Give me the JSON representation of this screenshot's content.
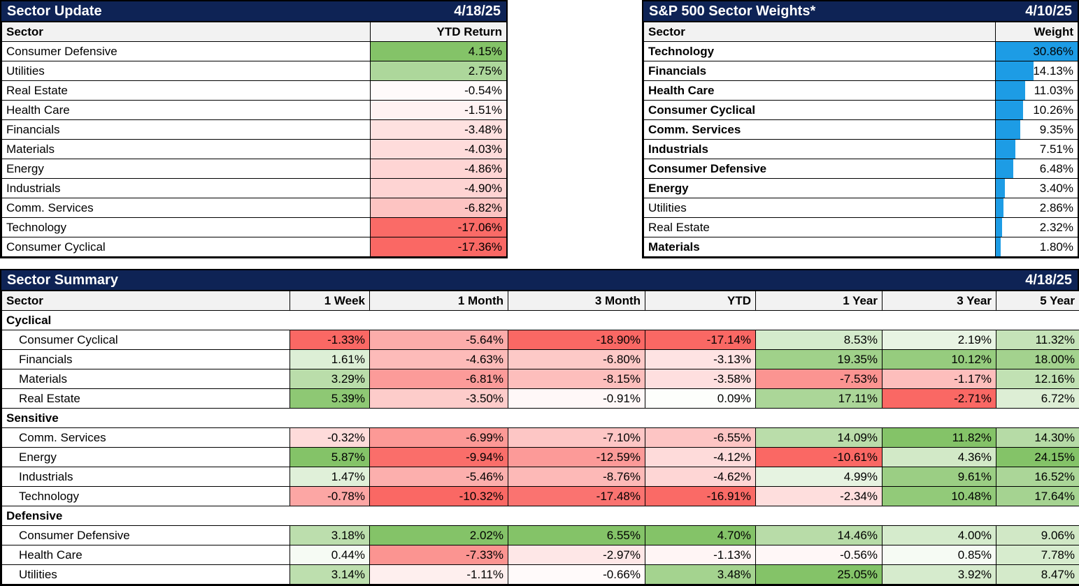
{
  "colors": {
    "header_navy": "#0E2355",
    "column_header_bg": "#F2F2F2",
    "grid_border": "#000000",
    "heat_green_max": "#84C368",
    "heat_red_min": "#FA6864",
    "heat_mid_white": "#FFFFFF",
    "weight_bar_blue": "#1D9CE5"
  },
  "chart_data": [
    {
      "type": "table",
      "title": "Sector Update",
      "date": "4/18/25",
      "columns": [
        "Sector",
        "YTD Return"
      ],
      "value_format": "percent-2dp",
      "color_scale": {
        "min_color": "#FA6864",
        "mid_color": "#FFFFFF",
        "max_color": "#84C368",
        "midpoint": 0,
        "scaling": "per-column value/extreme"
      },
      "rows": [
        [
          "Consumer Defensive",
          4.15
        ],
        [
          "Utilities",
          2.75
        ],
        [
          "Real Estate",
          -0.54
        ],
        [
          "Health Care",
          -1.51
        ],
        [
          "Financials",
          -3.48
        ],
        [
          "Materials",
          -4.03
        ],
        [
          "Energy",
          -4.86
        ],
        [
          "Industrials",
          -4.9
        ],
        [
          "Comm. Services",
          -6.82
        ],
        [
          "Technology",
          -17.06
        ],
        [
          "Consumer Cyclical",
          -17.36
        ]
      ]
    },
    {
      "type": "bar",
      "title": "S&P 500 Sector Weights*",
      "date": "4/10/25",
      "columns": [
        "Sector",
        "Weight"
      ],
      "bar_color": "#1D9CE5",
      "bar_scale_max": 30.86,
      "categories": [
        "Technology",
        "Financials",
        "Health Care",
        "Consumer Cyclical",
        "Comm. Services",
        "Industrials",
        "Consumer Defensive",
        "Energy",
        "Utilities",
        "Real Estate",
        "Materials"
      ],
      "values": [
        30.86,
        14.13,
        11.03,
        10.26,
        9.35,
        7.51,
        6.48,
        3.4,
        2.86,
        2.32,
        1.8
      ],
      "bold_rows": [
        true,
        true,
        true,
        true,
        true,
        true,
        true,
        true,
        false,
        false,
        true
      ]
    },
    {
      "type": "heatmap",
      "title": "Sector Summary",
      "date": "4/18/25",
      "columns": [
        "Sector",
        "1 Week",
        "1 Month",
        "3 Month",
        "YTD",
        "1 Year",
        "3 Year",
        "5 Year"
      ],
      "value_format": "percent-2dp",
      "color_scale": {
        "min_color": "#FA6864",
        "mid_color": "#FFFFFF",
        "max_color": "#84C368",
        "midpoint": 0,
        "scaling": "per-column value/extreme"
      },
      "groups": [
        {
          "label": "Cyclical",
          "rows": [
            {
              "sector": "Consumer Cyclical",
              "values": [
                -1.33,
                -5.64,
                -18.9,
                -17.14,
                8.53,
                2.19,
                11.32
              ]
            },
            {
              "sector": "Financials",
              "values": [
                1.61,
                -4.63,
                -6.8,
                -3.13,
                19.35,
                10.12,
                18.0
              ]
            },
            {
              "sector": "Materials",
              "values": [
                3.29,
                -6.81,
                -8.15,
                -3.58,
                -7.53,
                -1.17,
                12.16
              ]
            },
            {
              "sector": "Real Estate",
              "values": [
                5.39,
                -3.5,
                -0.91,
                0.09,
                17.11,
                -2.71,
                6.72
              ]
            }
          ]
        },
        {
          "label": "Sensitive",
          "rows": [
            {
              "sector": "Comm. Services",
              "values": [
                -0.32,
                -6.99,
                -7.1,
                -6.55,
                14.09,
                11.82,
                14.3
              ]
            },
            {
              "sector": "Energy",
              "values": [
                5.87,
                -9.94,
                -12.59,
                -4.12,
                -10.61,
                4.36,
                24.15
              ]
            },
            {
              "sector": "Industrials",
              "values": [
                1.47,
                -5.46,
                -8.76,
                -4.62,
                4.99,
                9.61,
                16.52
              ]
            },
            {
              "sector": "Technology",
              "values": [
                -0.78,
                -10.32,
                -17.48,
                -16.91,
                -2.34,
                10.48,
                17.64
              ]
            }
          ]
        },
        {
          "label": "Defensive",
          "rows": [
            {
              "sector": "Consumer Defensive",
              "values": [
                3.18,
                2.02,
                6.55,
                4.7,
                14.46,
                4.0,
                9.06
              ]
            },
            {
              "sector": "Health Care",
              "values": [
                0.44,
                -7.33,
                -2.97,
                -1.13,
                -0.56,
                0.85,
                7.78
              ]
            },
            {
              "sector": "Utilities",
              "values": [
                3.14,
                -1.11,
                -0.66,
                3.48,
                25.05,
                3.92,
                8.47
              ]
            }
          ]
        }
      ]
    }
  ]
}
